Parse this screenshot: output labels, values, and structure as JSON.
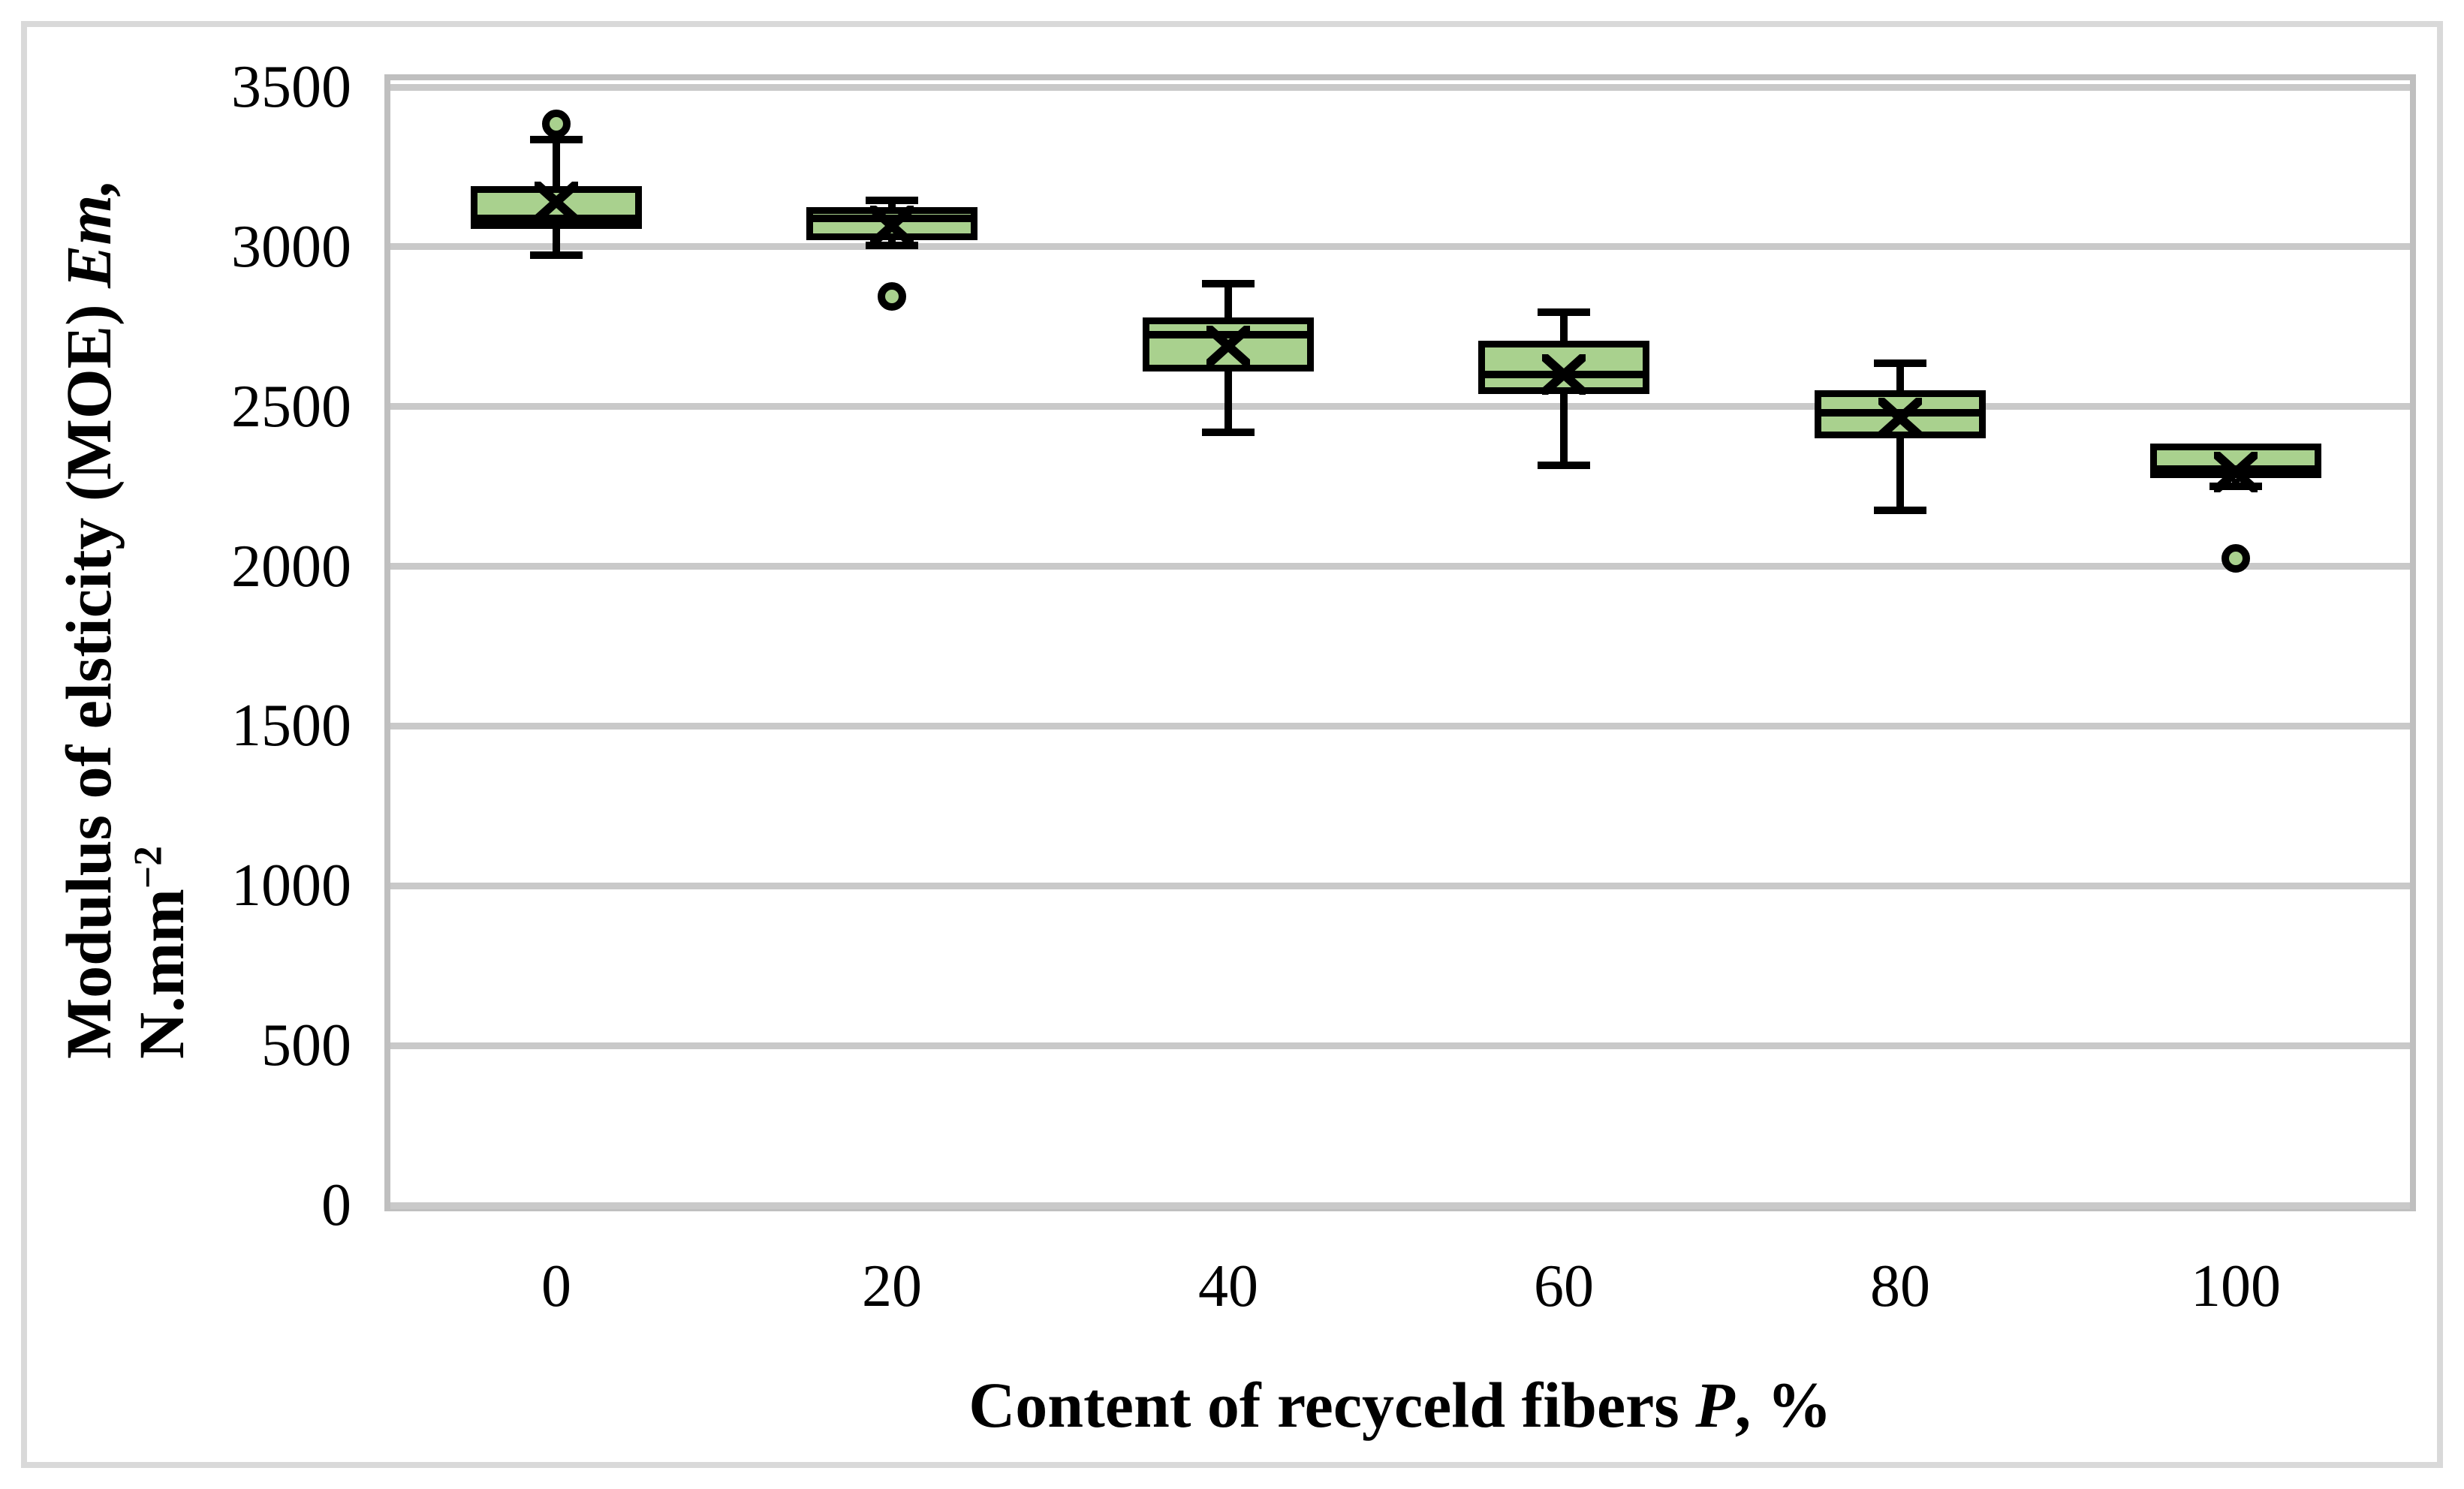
{
  "figure": {
    "background": "#ffffff",
    "outer_border_color": "#d9d9d9",
    "plot_border_color": "#bfbfbf"
  },
  "chart_data": {
    "type": "boxplot",
    "title": "",
    "xlabel": "Content of recyceld fibers P, %",
    "xlabel_parts": [
      {
        "text": "Content of recyceld fibers ",
        "italic": false
      },
      {
        "text": "P",
        "italic": true
      },
      {
        "text": ", %",
        "italic": false
      }
    ],
    "ylabel": "Modulus of elsticity (MOE) Em, N.mm−2",
    "ylabel_line1_parts": [
      {
        "text": "Modulus of elsticity (MOE) ",
        "italic": false
      },
      {
        "text": "Em,",
        "italic": true
      }
    ],
    "ylabel_line2_parts": [
      {
        "text": "N.mm",
        "italic": false
      },
      {
        "text": "−2",
        "italic": false,
        "sup": true
      }
    ],
    "ylim": [
      0,
      3500
    ],
    "y_tick_step": 500,
    "y_ticks": [
      3500,
      3000,
      2500,
      2000,
      1500,
      1000,
      500,
      0
    ],
    "y_tick_labels": [
      "3500",
      "3000",
      "2500",
      "2000",
      "1500",
      "1000",
      "500",
      "0"
    ],
    "categories": [
      "0",
      "20",
      "40",
      "60",
      "80",
      "100"
    ],
    "x_tick_labels": [
      "0",
      "20",
      "40",
      "60",
      "80",
      "100"
    ],
    "grid": "horizontal",
    "legend": "none",
    "box_fill_color": "#a9d18e",
    "box_line_color": "#000000",
    "gridline_color": "#c9c9c9",
    "series": [
      {
        "category": "0",
        "whisker_low": 2975,
        "q1": 3055,
        "median": 3090,
        "q3": 3190,
        "whisker_high": 3335,
        "mean": 3140,
        "outliers": [
          3385
        ]
      },
      {
        "category": "20",
        "whisker_low": 3005,
        "q1": 3020,
        "median": 3090,
        "q3": 3125,
        "whisker_high": 3145,
        "mean": 3065,
        "outliers": [
          2845
        ]
      },
      {
        "category": "40",
        "whisker_low": 2420,
        "q1": 2610,
        "median": 2725,
        "q3": 2780,
        "whisker_high": 2885,
        "mean": 2690,
        "outliers": []
      },
      {
        "category": "60",
        "whisker_low": 2315,
        "q1": 2540,
        "median": 2600,
        "q3": 2705,
        "whisker_high": 2795,
        "mean": 2600,
        "outliers": []
      },
      {
        "category": "80",
        "whisker_low": 2175,
        "q1": 2400,
        "median": 2480,
        "q3": 2550,
        "whisker_high": 2635,
        "mean": 2465,
        "outliers": []
      },
      {
        "category": "100",
        "whisker_low": 2250,
        "q1": 2275,
        "median": 2305,
        "q3": 2385,
        "whisker_high": 2385,
        "mean": 2295,
        "outliers": [
          2025
        ]
      }
    ]
  }
}
